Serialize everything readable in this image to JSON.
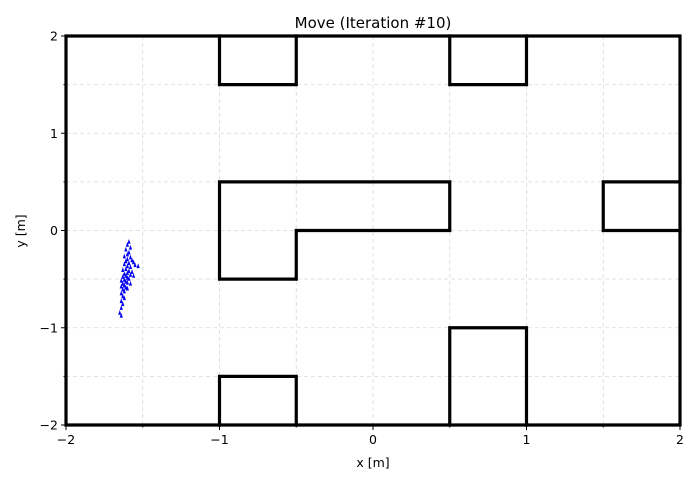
{
  "chart_data": {
    "type": "scatter",
    "title": "Move (Iteration #10)",
    "xlabel": "x [m]",
    "ylabel": "y [m]",
    "xlim": [
      -2,
      2
    ],
    "ylim": [
      -2,
      2
    ],
    "grid": true,
    "x_major_ticks": [
      -2,
      -1,
      0,
      1,
      2
    ],
    "y_major_ticks": [
      -2,
      -1,
      0,
      1,
      2
    ],
    "x_tick_labels": [
      "−2",
      "−1",
      "0",
      "1",
      "2"
    ],
    "y_tick_labels": [
      "−2",
      "−1",
      "0",
      "1",
      "2"
    ],
    "minor_ticks": [
      -1.5,
      -0.5,
      0.5,
      1.5
    ],
    "walls": [
      [
        [
          -2,
          2
        ],
        [
          2,
          2
        ],
        [
          2,
          -2
        ],
        [
          -2,
          -2
        ],
        [
          -2,
          2
        ]
      ],
      [
        [
          -1,
          2
        ],
        [
          -1,
          1.5
        ],
        [
          -0.5,
          1.5
        ],
        [
          -0.5,
          2
        ]
      ],
      [
        [
          0.5,
          2
        ],
        [
          0.5,
          1.5
        ],
        [
          1,
          1.5
        ],
        [
          1,
          2
        ]
      ],
      [
        [
          -1,
          0.5
        ],
        [
          0.5,
          0.5
        ],
        [
          0.5,
          0
        ],
        [
          -0.5,
          0
        ],
        [
          -0.5,
          -0.5
        ],
        [
          -1,
          -0.5
        ],
        [
          -1,
          0.5
        ]
      ],
      [
        [
          2,
          0.5
        ],
        [
          1.5,
          0.5
        ],
        [
          1.5,
          0
        ],
        [
          2,
          0
        ]
      ],
      [
        [
          -1,
          -2
        ],
        [
          -1,
          -1.5
        ],
        [
          -0.5,
          -1.5
        ],
        [
          -0.5,
          -2
        ]
      ],
      [
        [
          0.5,
          -2
        ],
        [
          0.5,
          -1
        ],
        [
          1,
          -1
        ],
        [
          1,
          -2
        ]
      ]
    ],
    "particle_color": "#0000ee",
    "particles": [
      [
        -1.59,
        -0.12
      ],
      [
        -1.6,
        -0.15
      ],
      [
        -1.58,
        -0.18
      ],
      [
        -1.61,
        -0.2
      ],
      [
        -1.59,
        -0.23
      ],
      [
        -1.6,
        -0.25
      ],
      [
        -1.62,
        -0.27
      ],
      [
        -1.58,
        -0.28
      ],
      [
        -1.6,
        -0.3
      ],
      [
        -1.61,
        -0.32
      ],
      [
        -1.57,
        -0.31
      ],
      [
        -1.59,
        -0.34
      ],
      [
        -1.62,
        -0.35
      ],
      [
        -1.6,
        -0.37
      ],
      [
        -1.58,
        -0.38
      ],
      [
        -1.61,
        -0.4
      ],
      [
        -1.63,
        -0.41
      ],
      [
        -1.59,
        -0.42
      ],
      [
        -1.6,
        -0.44
      ],
      [
        -1.62,
        -0.45
      ],
      [
        -1.58,
        -0.46
      ],
      [
        -1.61,
        -0.47
      ],
      [
        -1.63,
        -0.48
      ],
      [
        -1.6,
        -0.49
      ],
      [
        -1.59,
        -0.5
      ],
      [
        -1.62,
        -0.51
      ],
      [
        -1.64,
        -0.52
      ],
      [
        -1.61,
        -0.53
      ],
      [
        -1.6,
        -0.54
      ],
      [
        -1.63,
        -0.55
      ],
      [
        -1.62,
        -0.57
      ],
      [
        -1.64,
        -0.58
      ],
      [
        -1.61,
        -0.59
      ],
      [
        -1.63,
        -0.61
      ],
      [
        -1.62,
        -0.63
      ],
      [
        -1.64,
        -0.65
      ],
      [
        -1.63,
        -0.68
      ],
      [
        -1.62,
        -0.7
      ],
      [
        -1.64,
        -0.73
      ],
      [
        -1.63,
        -0.76
      ],
      [
        -1.64,
        -0.8
      ],
      [
        -1.65,
        -0.85
      ],
      [
        -1.64,
        -0.88
      ],
      [
        -1.53,
        -0.37
      ],
      [
        -1.55,
        -0.36
      ],
      [
        -1.56,
        -0.47
      ],
      [
        -1.57,
        -0.43
      ],
      [
        -1.56,
        -0.33
      ],
      [
        -1.58,
        -0.55
      ],
      [
        -1.6,
        -0.6
      ]
    ]
  }
}
